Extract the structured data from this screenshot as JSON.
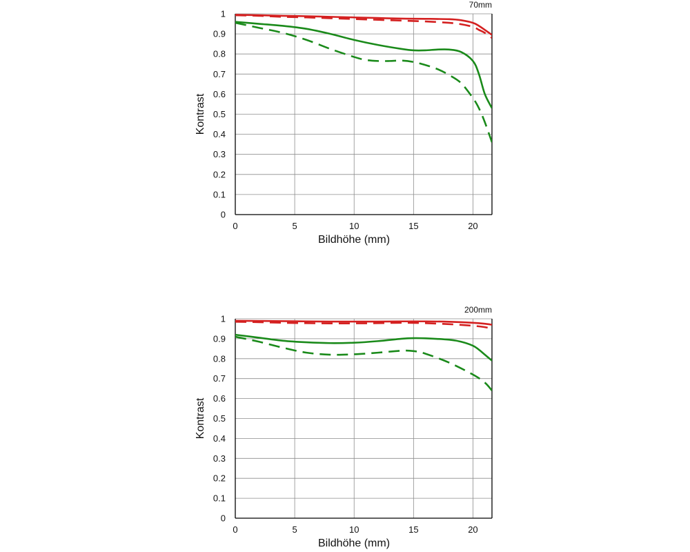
{
  "chart_data": [
    {
      "type": "line",
      "title": "70mm",
      "xlabel": "Bildhöhe (mm)",
      "ylabel": "Kontrast",
      "xlim": [
        0,
        21.6
      ],
      "ylim": [
        0,
        1
      ],
      "xticks": [
        0,
        5,
        10,
        15,
        20
      ],
      "xtick_labels": [
        "0",
        "5",
        "10",
        "15",
        "20"
      ],
      "yticks": [
        0,
        0.1,
        0.2,
        0.3,
        0.4,
        0.5,
        0.6,
        0.7,
        0.8,
        0.9,
        1
      ],
      "ytick_labels": [
        "0",
        "0.1",
        "0.2",
        "0.3",
        "0.4",
        "0.5",
        "0.6",
        "0.7",
        "0.8",
        "0.9",
        "1"
      ],
      "grid": true,
      "series": [
        {
          "name": "red-solid",
          "color": "#d42020",
          "dash": false,
          "x": [
            0,
            2,
            4,
            6,
            8,
            10,
            12,
            14,
            16,
            18,
            19,
            20,
            20.5,
            21,
            21.6
          ],
          "y": [
            0.995,
            0.993,
            0.99,
            0.988,
            0.985,
            0.982,
            0.979,
            0.976,
            0.975,
            0.973,
            0.968,
            0.955,
            0.94,
            0.92,
            0.895
          ]
        },
        {
          "name": "red-dashed",
          "color": "#d42020",
          "dash": true,
          "x": [
            0,
            2,
            4,
            6,
            8,
            10,
            12,
            14,
            16,
            18,
            19,
            20,
            20.5,
            21,
            21.6
          ],
          "y": [
            0.993,
            0.99,
            0.985,
            0.982,
            0.978,
            0.974,
            0.97,
            0.966,
            0.962,
            0.955,
            0.948,
            0.935,
            0.92,
            0.905,
            0.88
          ]
        },
        {
          "name": "green-solid",
          "color": "#1a8a1a",
          "dash": false,
          "x": [
            0,
            2,
            4,
            6,
            8,
            10,
            12,
            14,
            15,
            16,
            17,
            18,
            19,
            20,
            20.5,
            21,
            21.6
          ],
          "y": [
            0.96,
            0.95,
            0.94,
            0.925,
            0.9,
            0.87,
            0.845,
            0.825,
            0.818,
            0.818,
            0.822,
            0.822,
            0.81,
            0.765,
            0.7,
            0.6,
            0.53
          ]
        },
        {
          "name": "green-dashed",
          "color": "#1a8a1a",
          "dash": true,
          "x": [
            0,
            2,
            4,
            6,
            8,
            10,
            11,
            12,
            13,
            14,
            15,
            16,
            17,
            18,
            19,
            20,
            20.5,
            21,
            21.6
          ],
          "y": [
            0.955,
            0.93,
            0.905,
            0.87,
            0.825,
            0.785,
            0.77,
            0.765,
            0.765,
            0.767,
            0.76,
            0.745,
            0.725,
            0.695,
            0.655,
            0.58,
            0.53,
            0.46,
            0.36
          ]
        }
      ]
    },
    {
      "type": "line",
      "title": "200mm",
      "xlabel": "Bildhöhe (mm)",
      "ylabel": "Kontrast",
      "xlim": [
        0,
        21.6
      ],
      "ylim": [
        0,
        1
      ],
      "xticks": [
        0,
        5,
        10,
        15,
        20
      ],
      "xtick_labels": [
        "0",
        "5",
        "10",
        "15",
        "20"
      ],
      "yticks": [
        0,
        0.1,
        0.2,
        0.3,
        0.4,
        0.5,
        0.6,
        0.7,
        0.8,
        0.9,
        1
      ],
      "ytick_labels": [
        "0",
        "0.1",
        "0.2",
        "0.3",
        "0.4",
        "0.5",
        "0.6",
        "0.7",
        "0.8",
        "0.9",
        "1"
      ],
      "grid": true,
      "series": [
        {
          "name": "red-solid",
          "color": "#d42020",
          "dash": false,
          "x": [
            0,
            2,
            4,
            6,
            8,
            10,
            12,
            14,
            16,
            18,
            20,
            21,
            21.6
          ],
          "y": [
            0.99,
            0.989,
            0.988,
            0.987,
            0.986,
            0.986,
            0.986,
            0.987,
            0.987,
            0.985,
            0.98,
            0.975,
            0.97
          ]
        },
        {
          "name": "red-dashed",
          "color": "#d42020",
          "dash": true,
          "x": [
            0,
            2,
            4,
            6,
            8,
            10,
            12,
            14,
            16,
            18,
            20,
            21,
            21.6
          ],
          "y": [
            0.985,
            0.983,
            0.98,
            0.978,
            0.977,
            0.977,
            0.978,
            0.98,
            0.978,
            0.973,
            0.965,
            0.958,
            0.95
          ]
        },
        {
          "name": "green-solid",
          "color": "#1a8a1a",
          "dash": false,
          "x": [
            0,
            2,
            4,
            6,
            8,
            10,
            12,
            14,
            15,
            16,
            18,
            19,
            20,
            20.5,
            21,
            21.6
          ],
          "y": [
            0.92,
            0.905,
            0.89,
            0.882,
            0.878,
            0.88,
            0.888,
            0.9,
            0.903,
            0.902,
            0.895,
            0.885,
            0.865,
            0.845,
            0.82,
            0.79
          ]
        },
        {
          "name": "green-dashed",
          "color": "#1a8a1a",
          "dash": true,
          "x": [
            0,
            2,
            4,
            6,
            8,
            10,
            12,
            14,
            15,
            16,
            18,
            20,
            21,
            21.6
          ],
          "y": [
            0.91,
            0.885,
            0.855,
            0.83,
            0.82,
            0.822,
            0.83,
            0.84,
            0.838,
            0.825,
            0.78,
            0.72,
            0.68,
            0.64
          ]
        }
      ]
    }
  ]
}
